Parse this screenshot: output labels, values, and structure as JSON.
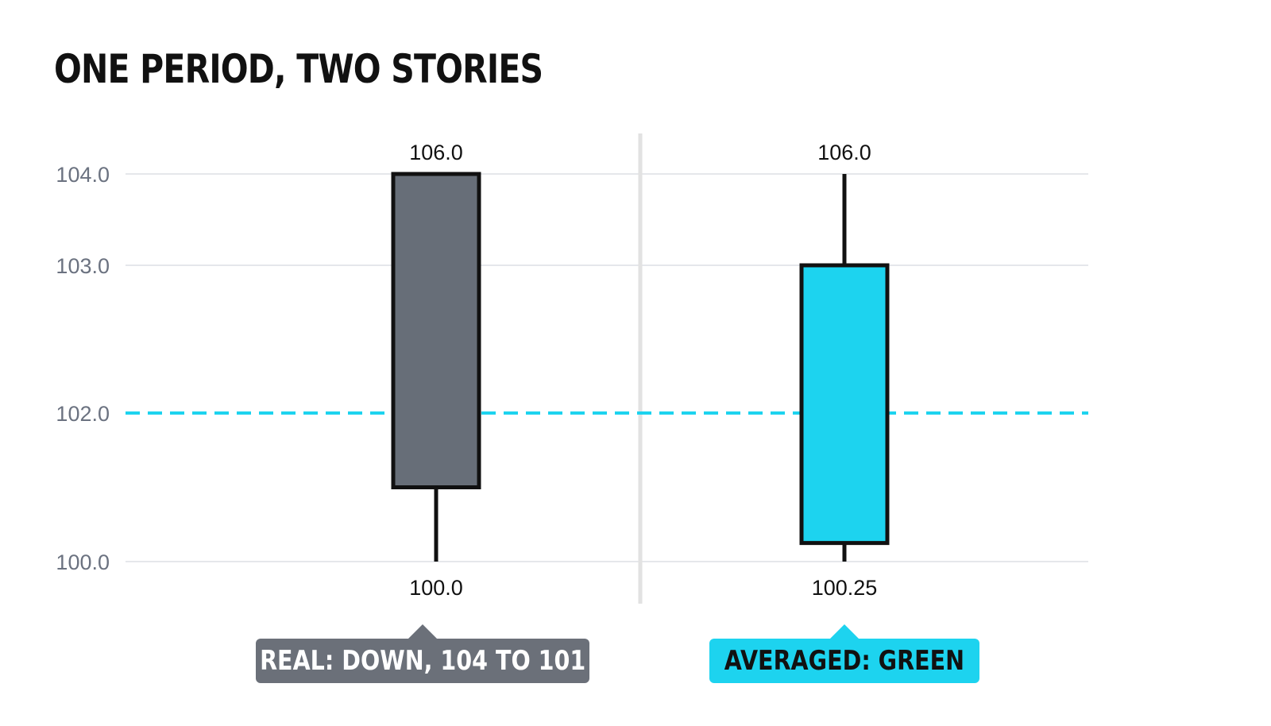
{
  "title": "ONE PERIOD, TWO STORIES",
  "chart_data": {
    "type": "candlestick",
    "y_ticks": [
      "104.0",
      "103.0",
      "102.0",
      "100.0"
    ],
    "tick_values": [
      104,
      103,
      102,
      100
    ],
    "reference_line": {
      "value": 102,
      "color": "#1dd3ef",
      "style": "dashed"
    },
    "candles": [
      {
        "open": 104,
        "close": 101,
        "high": 106,
        "low": 100,
        "high_label": "106.0",
        "low_label": "100.0",
        "fill": "#676e78",
        "callout": "REAL: DOWN, 104 TO 101"
      },
      {
        "open": 100.25,
        "close": 103,
        "high": 106,
        "low": 100.25,
        "high_label": "106.0",
        "low_label": "100.25",
        "fill": "#1dd3ef",
        "callout": "AVERAGED: GREEN"
      }
    ],
    "grid": true,
    "divider": true
  }
}
